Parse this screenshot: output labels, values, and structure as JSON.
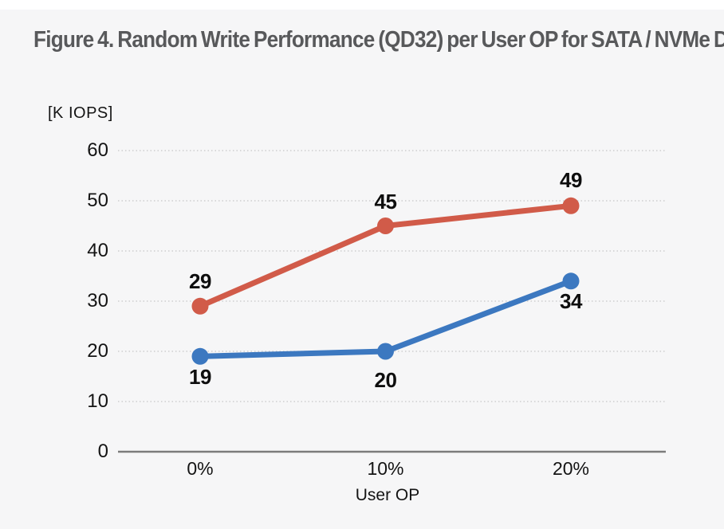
{
  "page": {
    "background": "#f6f6f7",
    "top_strip_color": "#ffffff",
    "title": "Figure 4. Random Write Performance (QD32) per User OP for SATA / NVMe D",
    "title_color": "#58595b"
  },
  "chart_data": {
    "type": "line",
    "title": "Figure 4. Random Write Performance (QD32) per User OP for SATA / NVMe D",
    "categories": [
      "0%",
      "10%",
      "20%"
    ],
    "x_axis_label": "User OP",
    "y_axis_unit_label": "[K IOPS]",
    "yticks": [
      0,
      10,
      20,
      30,
      40,
      50,
      60
    ],
    "ylim": [
      0,
      60
    ],
    "grid": "horizontal-dotted",
    "grid_color": "#c7c7c7",
    "axis_line_color": "#7c7c7c",
    "tick_label_color": "#141414",
    "data_label_color": "#0e0e0e",
    "legend": "none",
    "data_labels_shown": true,
    "series": [
      {
        "name": "red-series",
        "color": "#d15b49",
        "values": [
          29,
          45,
          49
        ]
      },
      {
        "name": "blue-series",
        "color": "#3c78c0",
        "values": [
          19,
          20,
          34
        ]
      }
    ]
  }
}
